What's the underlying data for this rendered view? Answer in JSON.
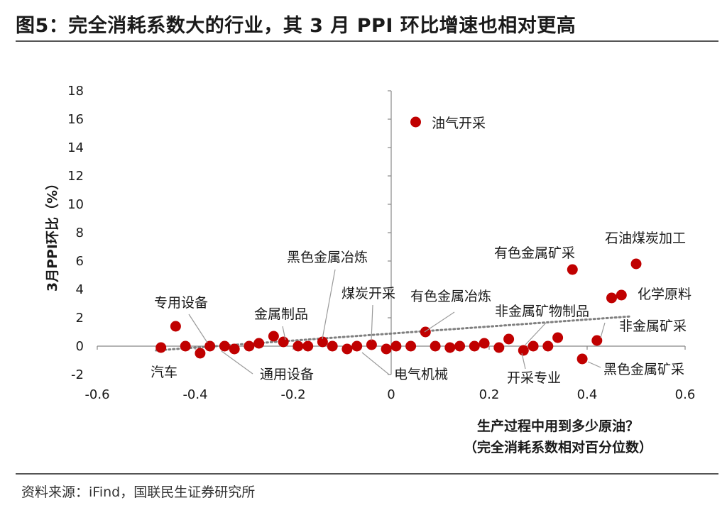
{
  "header": {
    "title": "图5：完全消耗系数大的行业，其 3 月 PPI 环比增速也相对更高"
  },
  "footer": {
    "source": "资料来源：iFind，国联民生证券研究所"
  },
  "colors": {
    "point": "#c00000",
    "trend": "#7f7f7f",
    "axis": "#888888"
  },
  "chart_data": {
    "type": "scatter",
    "xlabel_line1": "生产过程中用到多少原油？",
    "xlabel_line2": "（完全消耗系数相对百分位数）",
    "ylabel": "3月PPI环比（%）",
    "xlim": [
      -0.6,
      0.6
    ],
    "ylim": [
      -2,
      18
    ],
    "xticks": [
      "-0.6",
      "-0.4",
      "-0.2",
      "0",
      "0.2",
      "0.4",
      "0.6"
    ],
    "yticks": [
      "-2",
      "0",
      "2",
      "4",
      "6",
      "8",
      "10",
      "12",
      "14",
      "16",
      "18"
    ],
    "trendline": {
      "style": "dotted",
      "from": [
        -0.48,
        -0.3
      ],
      "to": [
        0.49,
        2.1
      ]
    },
    "points": [
      [
        -0.47,
        -0.1
      ],
      [
        -0.44,
        1.4
      ],
      [
        -0.42,
        0.0
      ],
      [
        -0.39,
        -0.5
      ],
      [
        -0.37,
        0.0
      ],
      [
        -0.34,
        0.0
      ],
      [
        -0.32,
        -0.2
      ],
      [
        -0.29,
        0.0
      ],
      [
        -0.27,
        0.2
      ],
      [
        -0.24,
        0.7
      ],
      [
        -0.22,
        0.3
      ],
      [
        -0.19,
        0.0
      ],
      [
        -0.17,
        0.0
      ],
      [
        -0.14,
        0.3
      ],
      [
        -0.12,
        0.0
      ],
      [
        -0.09,
        -0.2
      ],
      [
        -0.07,
        0.0
      ],
      [
        -0.04,
        0.1
      ],
      [
        -0.01,
        -0.2
      ],
      [
        0.01,
        0.0
      ],
      [
        0.04,
        0.0
      ],
      [
        0.05,
        15.8
      ],
      [
        0.07,
        1.0
      ],
      [
        0.09,
        0.0
      ],
      [
        0.12,
        -0.1
      ],
      [
        0.14,
        0.0
      ],
      [
        0.17,
        0.0
      ],
      [
        0.19,
        0.2
      ],
      [
        0.22,
        -0.1
      ],
      [
        0.24,
        0.5
      ],
      [
        0.27,
        -0.3
      ],
      [
        0.29,
        0.0
      ],
      [
        0.32,
        0.0
      ],
      [
        0.34,
        0.6
      ],
      [
        0.37,
        5.4
      ],
      [
        0.39,
        -0.9
      ],
      [
        0.42,
        0.4
      ],
      [
        0.45,
        3.4
      ],
      [
        0.47,
        3.6
      ],
      [
        0.5,
        5.8
      ]
    ],
    "annotations": [
      {
        "text": "油气开采"
      },
      {
        "text": "石油煤炭加工"
      },
      {
        "text": "有色金属矿采"
      },
      {
        "text": "化学原料"
      },
      {
        "text": "黑色金属冶炼"
      },
      {
        "text": "煤炭开采"
      },
      {
        "text": "有色金属冶炼"
      },
      {
        "text": "非金属矿物制品"
      },
      {
        "text": "非金属矿采"
      },
      {
        "text": "专用设备"
      },
      {
        "text": "金属制品"
      },
      {
        "text": "汽车"
      },
      {
        "text": "通用设备"
      },
      {
        "text": "电气机械"
      },
      {
        "text": "开采专业"
      },
      {
        "text": "黑色金属矿采"
      }
    ]
  }
}
